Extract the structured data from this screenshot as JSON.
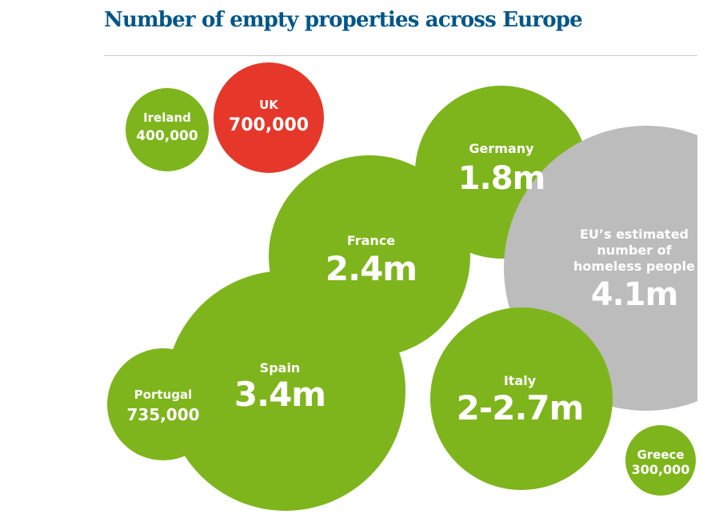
{
  "colors": {
    "title": "#005689",
    "rule": "#c8c8c8",
    "green": "#7eb51c",
    "red": "#e5382a",
    "grey": "#bcbcbc",
    "label": "#ffffff"
  },
  "chart_data": {
    "type": "bubble",
    "title": "Number of empty properties across Europe",
    "series": [
      {
        "name": "Ireland",
        "label": "Ireland",
        "value_label": "400,000",
        "value": 400000,
        "color": "#7eb51c"
      },
      {
        "name": "UK",
        "label": "UK",
        "value_label": "700,000",
        "value": 700000,
        "color": "#e5382a"
      },
      {
        "name": "Germany",
        "label": "Germany",
        "value_label": "1.8m",
        "value": 1800000,
        "color": "#7eb51c"
      },
      {
        "name": "EU homeless",
        "label_lines": [
          "EU’s estimated",
          "number of",
          "homeless people"
        ],
        "value_label": "4.1m",
        "value": 4100000,
        "color": "#bcbcbc"
      },
      {
        "name": "France",
        "label": "France",
        "value_label": "2.4m",
        "value": 2400000,
        "color": "#7eb51c"
      },
      {
        "name": "Spain",
        "label": "Spain",
        "value_label": "3.4m",
        "value": 3400000,
        "color": "#7eb51c"
      },
      {
        "name": "Portugal",
        "label": "Portugal",
        "value_label": "735,000",
        "value": 735000,
        "color": "#7eb51c"
      },
      {
        "name": "Italy",
        "label": "Italy",
        "value_label": "2-2.7m",
        "value": [
          2000000,
          2700000
        ],
        "color": "#7eb51c"
      },
      {
        "name": "Greece",
        "label": "Greece",
        "value_label": "300,000",
        "value": 300000,
        "color": "#7eb51c"
      }
    ]
  }
}
